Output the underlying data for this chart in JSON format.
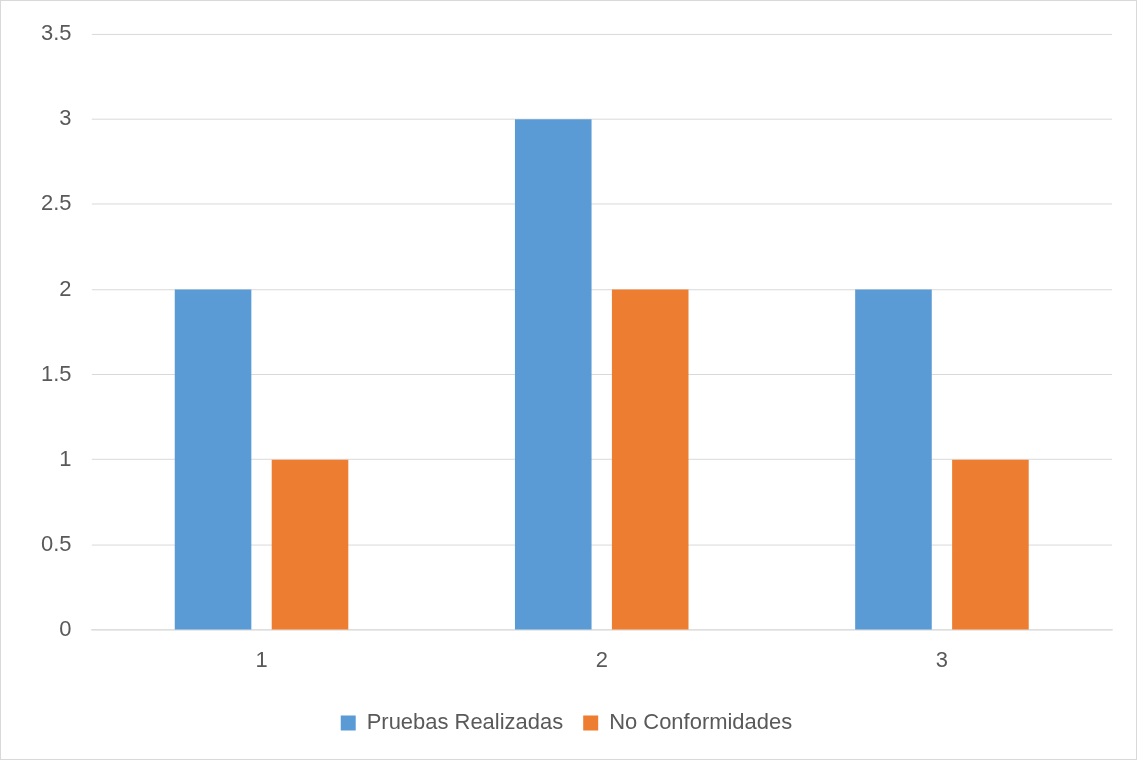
{
  "chart_data": {
    "type": "bar",
    "categories": [
      "1",
      "2",
      "3"
    ],
    "series": [
      {
        "name": "Pruebas Realizadas",
        "color": "#5b9bd5",
        "values": [
          2,
          3,
          2
        ]
      },
      {
        "name": "No Conformidades",
        "color": "#ed7d31",
        "values": [
          1,
          2,
          1
        ]
      }
    ],
    "ylim": [
      0,
      3.5
    ],
    "yticks": [
      0,
      0.5,
      1,
      1.5,
      2,
      2.5,
      3,
      3.5
    ],
    "grid": "y",
    "legend": "bottom"
  }
}
